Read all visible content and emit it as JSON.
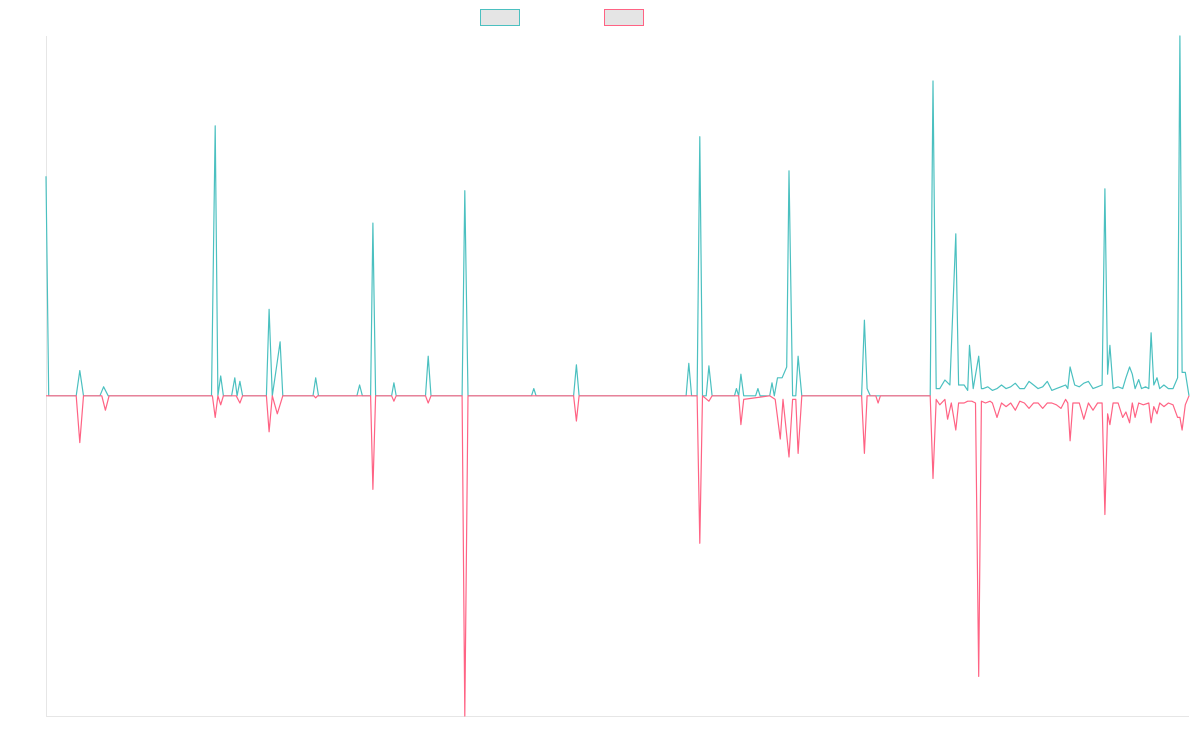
{
  "chart_data": {
    "type": "line",
    "title": "",
    "xlabel": "",
    "ylabel": "",
    "xlim": [
      0,
      250
    ],
    "ylim": [
      -89,
      100
    ],
    "grid": false,
    "legend_position": "top-center",
    "series": [
      {
        "name": "",
        "color": "#4bc0c0",
        "points": [
          [
            0,
            61
          ],
          [
            0.6,
            0
          ],
          [
            6.6,
            0
          ],
          [
            7.4,
            7
          ],
          [
            8.2,
            0
          ],
          [
            11.8,
            0
          ],
          [
            12.6,
            2.5
          ],
          [
            13.6,
            0
          ],
          [
            36.2,
            0
          ],
          [
            37,
            75
          ],
          [
            37.6,
            0
          ],
          [
            38.2,
            5.5
          ],
          [
            38.8,
            0
          ],
          [
            40.6,
            0
          ],
          [
            41.3,
            5
          ],
          [
            41.8,
            0
          ],
          [
            42.4,
            4
          ],
          [
            43,
            0
          ],
          [
            48.2,
            0
          ],
          [
            48.8,
            24
          ],
          [
            49.5,
            0
          ],
          [
            50.6,
            9.5
          ],
          [
            51.2,
            15
          ],
          [
            51.8,
            0
          ],
          [
            58.4,
            0
          ],
          [
            59,
            5
          ],
          [
            59.6,
            0
          ],
          [
            68,
            0
          ],
          [
            68.6,
            3
          ],
          [
            69.2,
            0
          ],
          [
            71,
            0
          ],
          [
            71.5,
            48
          ],
          [
            72.1,
            0
          ],
          [
            75.6,
            0
          ],
          [
            76.1,
            3.6
          ],
          [
            76.6,
            0
          ],
          [
            83,
            0
          ],
          [
            83.6,
            11
          ],
          [
            84.2,
            0
          ],
          [
            91,
            0
          ],
          [
            91.6,
            57
          ],
          [
            92.3,
            0
          ],
          [
            106.2,
            0
          ],
          [
            106.7,
            2
          ],
          [
            107.2,
            0
          ],
          [
            115.4,
            0
          ],
          [
            116,
            8.6
          ],
          [
            116.6,
            0
          ],
          [
            140,
            0
          ],
          [
            140.6,
            9
          ],
          [
            141.2,
            0
          ],
          [
            142.4,
            0
          ],
          [
            143,
            72
          ],
          [
            143.6,
            0
          ],
          [
            144.4,
            0
          ],
          [
            145,
            8.3
          ],
          [
            145.7,
            0
          ],
          [
            150.6,
            0
          ],
          [
            151,
            2
          ],
          [
            151.5,
            0
          ],
          [
            152,
            6
          ],
          [
            152.6,
            0
          ],
          [
            155.2,
            0
          ],
          [
            155.7,
            2
          ],
          [
            156.2,
            0
          ],
          [
            158.3,
            0
          ],
          [
            158.8,
            3.6
          ],
          [
            159.3,
            0
          ],
          [
            160,
            5
          ],
          [
            161,
            5
          ],
          [
            162,
            8
          ],
          [
            162.5,
            62.5
          ],
          [
            163.3,
            0
          ],
          [
            164,
            0
          ],
          [
            164.5,
            11
          ],
          [
            165.3,
            0
          ],
          [
            178.4,
            0
          ],
          [
            179,
            21
          ],
          [
            179.6,
            2
          ],
          [
            180.3,
            0
          ],
          [
            193.4,
            0
          ],
          [
            194,
            87.5
          ],
          [
            194.7,
            2
          ],
          [
            195.5,
            2
          ],
          [
            196.6,
            4.4
          ],
          [
            197.7,
            3
          ],
          [
            199,
            45
          ],
          [
            199.6,
            3
          ],
          [
            200.8,
            3
          ],
          [
            201.6,
            1.5
          ],
          [
            202,
            14
          ],
          [
            202.8,
            2
          ],
          [
            204,
            11
          ],
          [
            204.6,
            2
          ],
          [
            205,
            2
          ],
          [
            206,
            2.5
          ],
          [
            207,
            1.5
          ],
          [
            208,
            2
          ],
          [
            209,
            3
          ],
          [
            210,
            2
          ],
          [
            211,
            2.5
          ],
          [
            212,
            3.5
          ],
          [
            213,
            2
          ],
          [
            214,
            2
          ],
          [
            215,
            4
          ],
          [
            216,
            3
          ],
          [
            217,
            2
          ],
          [
            218,
            2.5
          ],
          [
            219,
            4
          ],
          [
            220,
            1.5
          ],
          [
            221,
            2
          ],
          [
            222,
            2.5
          ],
          [
            223,
            3
          ],
          [
            223.5,
            2
          ],
          [
            224,
            8
          ],
          [
            225,
            3
          ],
          [
            226,
            2.5
          ],
          [
            227,
            3.5
          ],
          [
            228,
            4
          ],
          [
            229,
            2
          ],
          [
            230,
            2.5
          ],
          [
            231,
            3
          ],
          [
            231.6,
            57.5
          ],
          [
            232.2,
            6
          ],
          [
            232.7,
            14
          ],
          [
            233.4,
            2
          ],
          [
            234.5,
            2.5
          ],
          [
            235.5,
            2
          ],
          [
            236.2,
            5
          ],
          [
            237,
            8
          ],
          [
            237.6,
            6
          ],
          [
            238.2,
            2
          ],
          [
            239,
            4.5
          ],
          [
            239.6,
            2
          ],
          [
            240.5,
            2.5
          ],
          [
            241.2,
            2
          ],
          [
            241.7,
            17.5
          ],
          [
            242.3,
            3
          ],
          [
            243,
            5
          ],
          [
            243.6,
            2
          ],
          [
            244.5,
            3
          ],
          [
            245.5,
            2
          ],
          [
            246.5,
            2
          ],
          [
            247.5,
            5
          ],
          [
            248,
            100
          ],
          [
            248.5,
            6.5
          ],
          [
            249.2,
            6.5
          ],
          [
            250,
            0
          ]
        ]
      },
      {
        "name": "",
        "color": "#ff6384",
        "points": [
          [
            0,
            0
          ],
          [
            6.6,
            0
          ],
          [
            7.4,
            -13
          ],
          [
            8.2,
            0
          ],
          [
            12.2,
            0
          ],
          [
            13,
            -4
          ],
          [
            13.8,
            0
          ],
          [
            36.4,
            0
          ],
          [
            37,
            -6
          ],
          [
            37.6,
            0
          ],
          [
            38.2,
            -2.5
          ],
          [
            38.8,
            0
          ],
          [
            41.6,
            0
          ],
          [
            42.4,
            -2
          ],
          [
            43,
            0
          ],
          [
            48.2,
            0
          ],
          [
            48.8,
            -10
          ],
          [
            49.5,
            0
          ],
          [
            50.6,
            -5
          ],
          [
            51.8,
            0
          ],
          [
            58.6,
            0
          ],
          [
            59,
            -0.6
          ],
          [
            59.4,
            0
          ],
          [
            71,
            0
          ],
          [
            71.5,
            -26
          ],
          [
            72.1,
            0
          ],
          [
            75.6,
            0
          ],
          [
            76.1,
            -1.5
          ],
          [
            76.6,
            0
          ],
          [
            83,
            0
          ],
          [
            83.6,
            -2
          ],
          [
            84.2,
            0
          ],
          [
            91,
            0
          ],
          [
            91.6,
            -89
          ],
          [
            92.3,
            0
          ],
          [
            115.4,
            0
          ],
          [
            116,
            -7
          ],
          [
            116.6,
            0
          ],
          [
            142.4,
            0
          ],
          [
            143,
            -41
          ],
          [
            143.6,
            0
          ],
          [
            145,
            -1.5
          ],
          [
            145.7,
            0
          ],
          [
            151.5,
            0
          ],
          [
            152,
            -8
          ],
          [
            152.6,
            -1
          ],
          [
            158.3,
            0
          ],
          [
            159.5,
            -1
          ],
          [
            160.6,
            -12
          ],
          [
            161.2,
            -1
          ],
          [
            162.5,
            -17
          ],
          [
            163.3,
            -1
          ],
          [
            164,
            -1
          ],
          [
            164.5,
            -16
          ],
          [
            165.3,
            0
          ],
          [
            178.4,
            0
          ],
          [
            179,
            -16
          ],
          [
            179.6,
            0
          ],
          [
            181.5,
            0
          ],
          [
            182,
            -2
          ],
          [
            182.5,
            0
          ],
          [
            193.4,
            0
          ],
          [
            194,
            -23
          ],
          [
            194.7,
            -1
          ],
          [
            195.5,
            -2.5
          ],
          [
            196.6,
            -1
          ],
          [
            197.2,
            -6.5
          ],
          [
            198,
            -2
          ],
          [
            199,
            -9.5
          ],
          [
            199.6,
            -2
          ],
          [
            200.8,
            -2
          ],
          [
            201.6,
            -1.5
          ],
          [
            202.5,
            -1.5
          ],
          [
            203.3,
            -2
          ],
          [
            204,
            -78
          ],
          [
            204.6,
            -1.5
          ],
          [
            205.5,
            -2
          ],
          [
            206.5,
            -1.5
          ],
          [
            207,
            -2
          ],
          [
            208,
            -6
          ],
          [
            209,
            -2
          ],
          [
            210,
            -3
          ],
          [
            211,
            -2
          ],
          [
            212,
            -4
          ],
          [
            213,
            -1.5
          ],
          [
            214,
            -2
          ],
          [
            215,
            -3.5
          ],
          [
            216,
            -2
          ],
          [
            217,
            -2
          ],
          [
            218,
            -3.5
          ],
          [
            219,
            -2
          ],
          [
            220,
            -2
          ],
          [
            221,
            -2.5
          ],
          [
            222,
            -3.5
          ],
          [
            223,
            -1
          ],
          [
            223.5,
            -2
          ],
          [
            224,
            -12.5
          ],
          [
            224.6,
            -2
          ],
          [
            226,
            -2
          ],
          [
            227,
            -6.5
          ],
          [
            228,
            -2
          ],
          [
            229,
            -4
          ],
          [
            230,
            -2
          ],
          [
            231,
            -2
          ],
          [
            231.6,
            -33
          ],
          [
            232.2,
            -5
          ],
          [
            232.7,
            -8
          ],
          [
            233.4,
            -2
          ],
          [
            234.5,
            -2
          ],
          [
            235.5,
            -6
          ],
          [
            236.2,
            -4.5
          ],
          [
            237,
            -7.5
          ],
          [
            237.6,
            -2
          ],
          [
            238.2,
            -6
          ],
          [
            239,
            -2
          ],
          [
            240,
            -2.5
          ],
          [
            241.2,
            -2
          ],
          [
            241.7,
            -7.5
          ],
          [
            242.3,
            -3
          ],
          [
            243,
            -5
          ],
          [
            243.6,
            -2
          ],
          [
            244.5,
            -3
          ],
          [
            245.5,
            -2
          ],
          [
            246.5,
            -2.5
          ],
          [
            247.5,
            -6
          ],
          [
            248,
            -6
          ],
          [
            248.5,
            -9.5
          ],
          [
            249.2,
            -2.5
          ],
          [
            250,
            0
          ]
        ]
      }
    ]
  }
}
